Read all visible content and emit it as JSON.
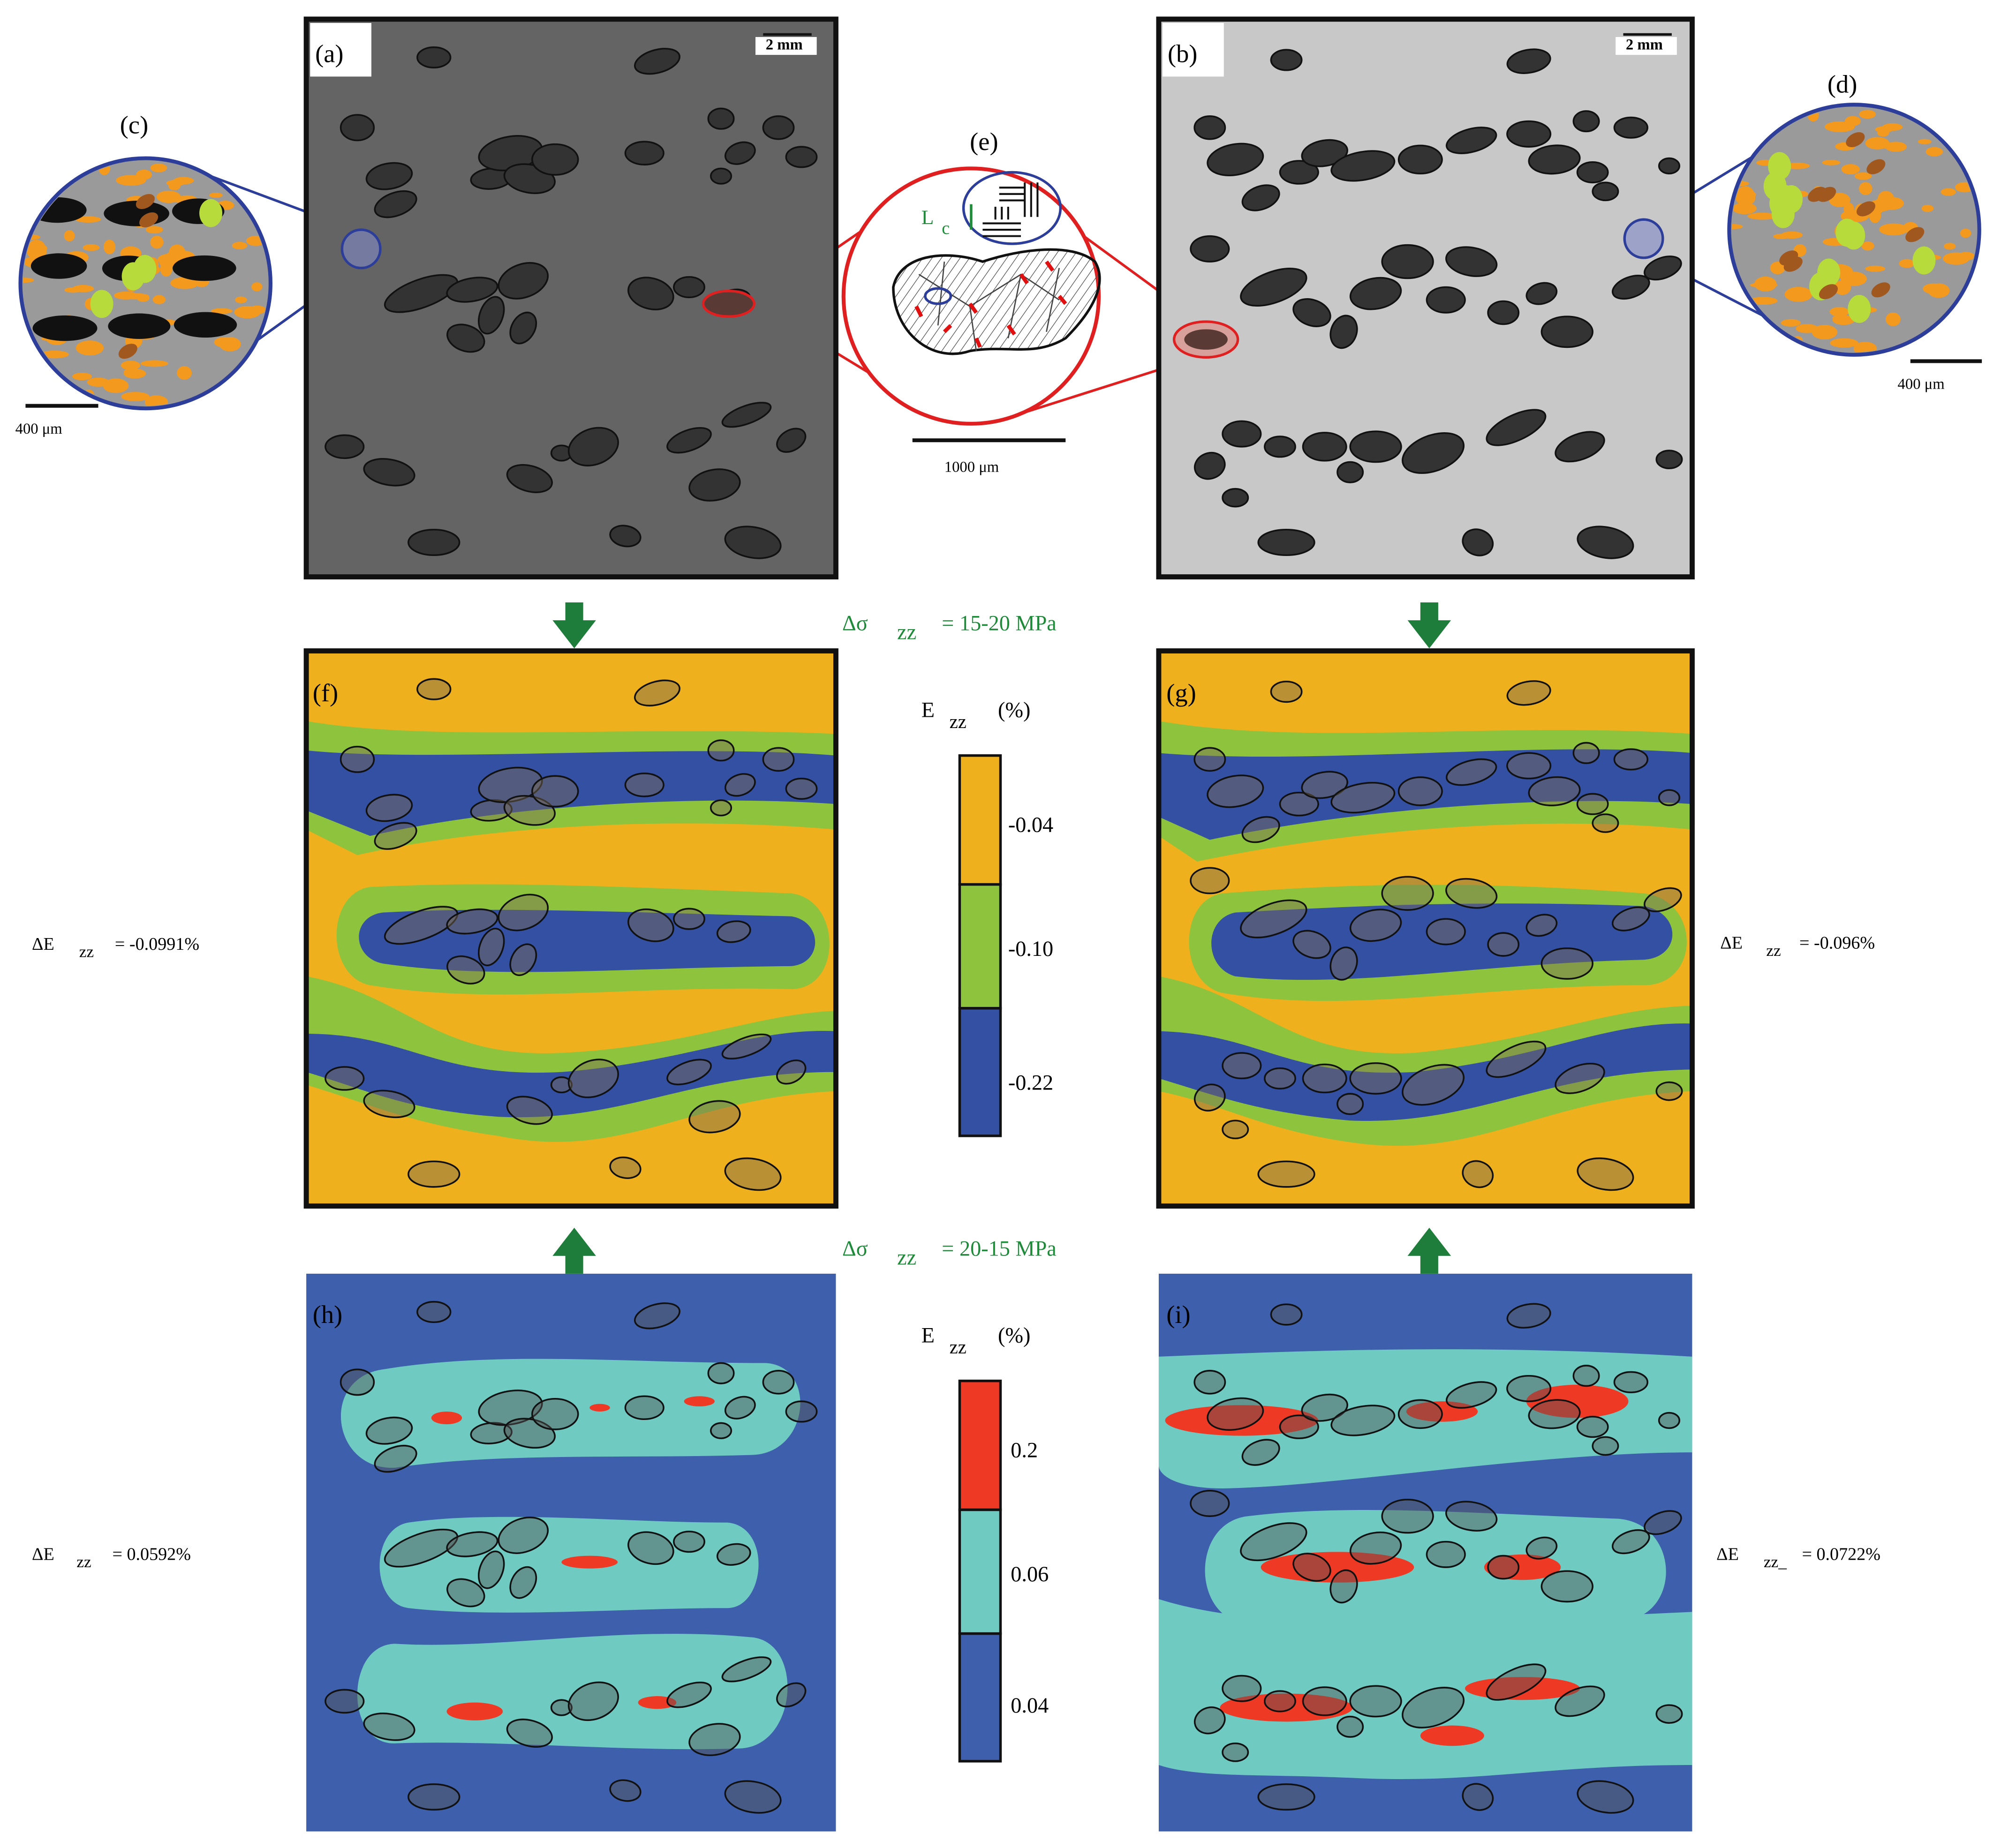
{
  "panel_labels": [
    "(a)",
    "(b)",
    "(c)",
    "(d)",
    "(e)",
    "(f)",
    "(g)",
    "(h)",
    "(i)"
  ],
  "scale_bars": {
    "a": "2 mm",
    "b": "2 mm",
    "c": "400 μm",
    "d": "400 μm",
    "e": "1000 μm"
  },
  "inset_e": {
    "symbol": "L",
    "subscript": "c"
  },
  "loading": [
    {
      "symbol": "Δσ",
      "subscript": "zz",
      "value": "= 15-20 MPa"
    },
    {
      "symbol": "Δσ",
      "subscript": "zz",
      "value": "= 20-15 MPa"
    }
  ],
  "colorbars": [
    {
      "title": "E",
      "subscript": "zz",
      "unit": "(%)",
      "labels": [
        "-0.04",
        "-0.10",
        "-0.22"
      ]
    },
    {
      "title": "E",
      "subscript": "zz",
      "unit": "(%)",
      "labels": [
        "0.2",
        "0.06",
        "0.04"
      ]
    }
  ],
  "strain_changes": [
    {
      "symbol": "ΔE",
      "subscript": "zz",
      "value": "= -0.0991%"
    },
    {
      "symbol": "ΔE",
      "subscript": "zz",
      "value": "= -0.096%"
    },
    {
      "symbol": "ΔE",
      "subscript": "zz",
      "value": "= 0.0592%"
    },
    {
      "symbol": "ΔE",
      "subscript": "zz_",
      "value": "= 0.0722%"
    }
  ]
}
